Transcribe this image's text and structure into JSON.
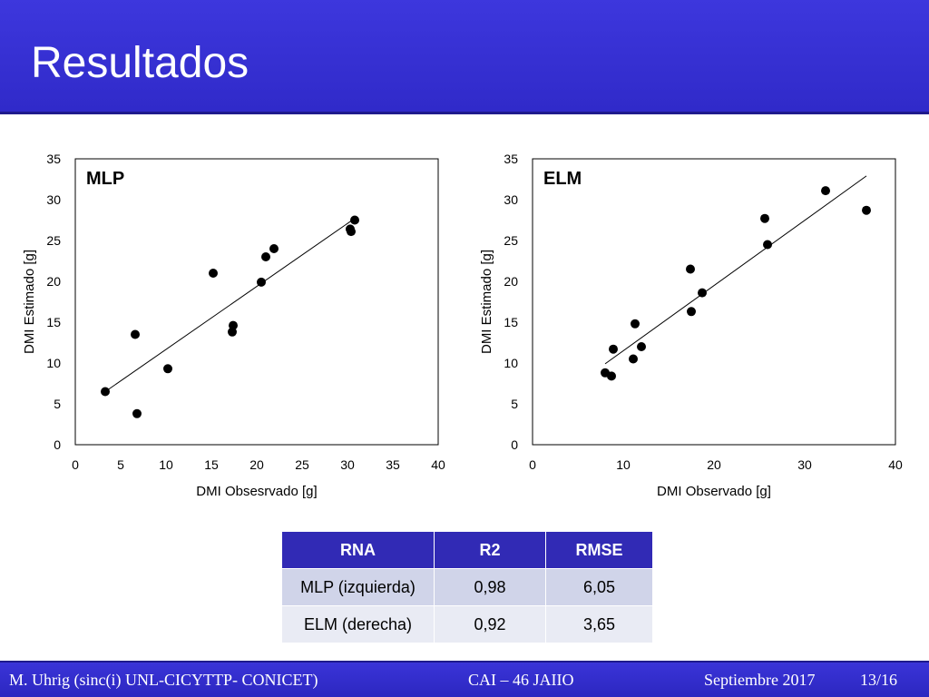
{
  "title": "Resultados",
  "chart_data": [
    {
      "type": "scatter",
      "panel_label": "MLP",
      "xlabel": "DMI Obsesrvado [g]",
      "ylabel": "DMI Estimado [g]",
      "xlim": [
        0,
        40
      ],
      "ylim": [
        0,
        35
      ],
      "xticks": [
        0,
        5,
        10,
        15,
        20,
        25,
        30,
        35,
        40
      ],
      "yticks": [
        0,
        5,
        10,
        15,
        20,
        25,
        30,
        35
      ],
      "points": [
        {
          "x": 3.3,
          "y": 6.5
        },
        {
          "x": 6.6,
          "y": 13.5
        },
        {
          "x": 6.8,
          "y": 3.8
        },
        {
          "x": 10.2,
          "y": 9.3
        },
        {
          "x": 15.2,
          "y": 21.0
        },
        {
          "x": 17.3,
          "y": 13.8
        },
        {
          "x": 17.4,
          "y": 14.6
        },
        {
          "x": 20.5,
          "y": 19.9
        },
        {
          "x": 21.0,
          "y": 23.0
        },
        {
          "x": 21.9,
          "y": 24.0
        },
        {
          "x": 30.3,
          "y": 26.4
        },
        {
          "x": 30.4,
          "y": 26.1
        },
        {
          "x": 30.8,
          "y": 27.5
        }
      ],
      "trendline": {
        "x": [
          3.3,
          30.8
        ],
        "y": [
          6.5,
          27.7
        ]
      }
    },
    {
      "type": "scatter",
      "panel_label": "ELM",
      "xlabel": "DMI Observado [g]",
      "ylabel": "DMI Estimado [g]",
      "xlim": [
        0,
        40
      ],
      "ylim": [
        0,
        35
      ],
      "xticks": [
        0,
        10,
        20,
        30,
        40
      ],
      "yticks": [
        0,
        5,
        10,
        15,
        20,
        25,
        30,
        35
      ],
      "points": [
        {
          "x": 8.0,
          "y": 8.8
        },
        {
          "x": 8.7,
          "y": 8.4
        },
        {
          "x": 8.9,
          "y": 11.7
        },
        {
          "x": 11.1,
          "y": 10.5
        },
        {
          "x": 11.3,
          "y": 14.8
        },
        {
          "x": 12.0,
          "y": 12.0
        },
        {
          "x": 17.4,
          "y": 21.5
        },
        {
          "x": 17.5,
          "y": 16.3
        },
        {
          "x": 18.7,
          "y": 18.6
        },
        {
          "x": 25.6,
          "y": 27.7
        },
        {
          "x": 25.9,
          "y": 24.5
        },
        {
          "x": 32.3,
          "y": 31.1
        },
        {
          "x": 36.8,
          "y": 28.7
        }
      ],
      "trendline": {
        "x": [
          8.0,
          36.8
        ],
        "y": [
          9.9,
          32.9
        ]
      }
    }
  ],
  "table": {
    "headers": [
      "RNA",
      "R2",
      "RMSE"
    ],
    "rows": [
      [
        "MLP (izquierda)",
        "0,98",
        "6,05"
      ],
      [
        "ELM (derecha)",
        "0,92",
        "3,65"
      ]
    ]
  },
  "footer": {
    "author": "M. Uhrig (sinc(i) UNL-CICYTTP- CONICET)",
    "event": "CAI – 46 JAIIO",
    "date": "Septiembre 2017",
    "page": "13/16"
  },
  "colors": {
    "accent": "#312ab5",
    "row1": "#d0d4e9",
    "row2": "#e9ebf4"
  }
}
